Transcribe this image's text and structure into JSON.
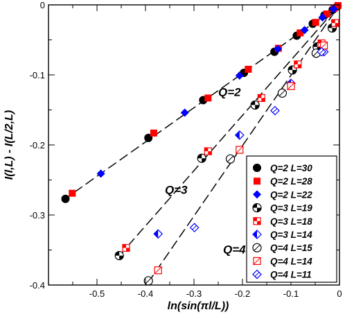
{
  "chart_data": {
    "type": "scatter",
    "xlabel": "ln(sin(πl/L))",
    "ylabel": "I(l,L) - I(L/2,L)",
    "xlim": [
      -0.6,
      0.0
    ],
    "ylim": [
      -0.4,
      0.0
    ],
    "xticks": [
      -0.5,
      -0.4,
      -0.3,
      -0.2,
      -0.1,
      0
    ],
    "yticks": [
      0,
      -0.1,
      -0.2,
      -0.3,
      -0.4
    ],
    "xtick_labels": [
      "-0.5",
      "-0.4",
      "-0.3",
      "-0.2",
      "-0.1",
      "0"
    ],
    "ytick_labels": [
      "0",
      "-0.1",
      "-0.2",
      "-0.3",
      "-0.4"
    ],
    "legend_position": "lower-right",
    "annotations": [
      {
        "text": "Q=2",
        "x": -0.25,
        "y": -0.13
      },
      {
        "text": "Q=3",
        "x": -0.36,
        "y": -0.27
      },
      {
        "text": "Q=4",
        "x": -0.24,
        "y": -0.355
      }
    ],
    "fit_lines": [
      {
        "name": "Q=2 fit",
        "x": [
          -0.57,
          0.0
        ],
        "y": [
          -0.279,
          0.0
        ]
      },
      {
        "name": "Q=3 fit",
        "x": [
          -0.455,
          0.0
        ],
        "y": [
          -0.359,
          0.0
        ]
      },
      {
        "name": "Q=4 fit",
        "x": [
          -0.395,
          0.0
        ],
        "y": [
          -0.397,
          0.0
        ]
      }
    ],
    "series": [
      {
        "name": "Q=2 L=30",
        "marker": "circle",
        "fill": "solid",
        "color": "#000000",
        "x": [
          -0.565,
          -0.394,
          -0.281,
          -0.197,
          -0.134,
          -0.088,
          -0.055,
          -0.031,
          -0.014,
          -0.004
        ],
        "y": [
          -0.277,
          -0.19,
          -0.136,
          -0.097,
          -0.067,
          -0.044,
          -0.027,
          -0.015,
          -0.007,
          -0.002
        ]
      },
      {
        "name": "Q=2 L=28",
        "marker": "square",
        "fill": "solid",
        "color": "#ff0000",
        "x": [
          -0.551,
          -0.383,
          -0.271,
          -0.188,
          -0.126,
          -0.081,
          -0.049,
          -0.026,
          -0.011,
          -0.003
        ],
        "y": [
          -0.269,
          -0.183,
          -0.133,
          -0.092,
          -0.062,
          -0.04,
          -0.025,
          -0.013,
          -0.005,
          -0.001
        ]
      },
      {
        "name": "Q=2 L=22",
        "marker": "diamond",
        "fill": "solid",
        "color": "#0000ff",
        "x": [
          -0.492,
          -0.319,
          -0.206,
          -0.127,
          -0.072,
          -0.035,
          -0.012
        ],
        "y": [
          -0.241,
          -0.154,
          -0.101,
          -0.063,
          -0.036,
          -0.018,
          -0.006
        ]
      },
      {
        "name": "Q=3 L=19",
        "marker": "circle",
        "fill": "checker",
        "color": "#000000",
        "x": [
          -0.454,
          -0.284,
          -0.174,
          -0.097,
          -0.046,
          -0.015
        ],
        "y": [
          -0.358,
          -0.219,
          -0.143,
          -0.093,
          -0.06,
          -0.033
        ]
      },
      {
        "name": "Q=3 L=18",
        "marker": "square",
        "fill": "checker",
        "color": "#ff0000",
        "x": [
          -0.44,
          -0.271,
          -0.161,
          -0.086,
          -0.037,
          -0.009
        ],
        "y": [
          -0.347,
          -0.209,
          -0.133,
          -0.085,
          -0.055,
          -0.026
        ]
      },
      {
        "name": "Q=3 L=14",
        "marker": "diamond",
        "fill": "half",
        "color": "#0000ff",
        "x": [
          -0.374,
          -0.206,
          -0.1,
          -0.032
        ],
        "y": [
          -0.327,
          -0.186,
          -0.112,
          -0.067
        ]
      },
      {
        "name": "Q=4 L=15",
        "marker": "circle",
        "fill": "slash",
        "color": "#000000",
        "x": [
          -0.394,
          -0.225,
          -0.118,
          -0.048
        ],
        "y": [
          -0.394,
          -0.22,
          -0.126,
          -0.069
        ]
      },
      {
        "name": "Q=4 L=14",
        "marker": "square",
        "fill": "slash",
        "color": "#ff0000",
        "x": [
          -0.374,
          -0.206,
          -0.1,
          -0.032
        ],
        "y": [
          -0.379,
          -0.207,
          -0.116,
          -0.058
        ]
      },
      {
        "name": "Q=4 L=11",
        "marker": "diamond",
        "fill": "slash",
        "color": "#0000ff",
        "x": [
          -0.299,
          -0.133,
          -0.037
        ],
        "y": [
          -0.318,
          -0.151,
          -0.067
        ]
      }
    ]
  }
}
